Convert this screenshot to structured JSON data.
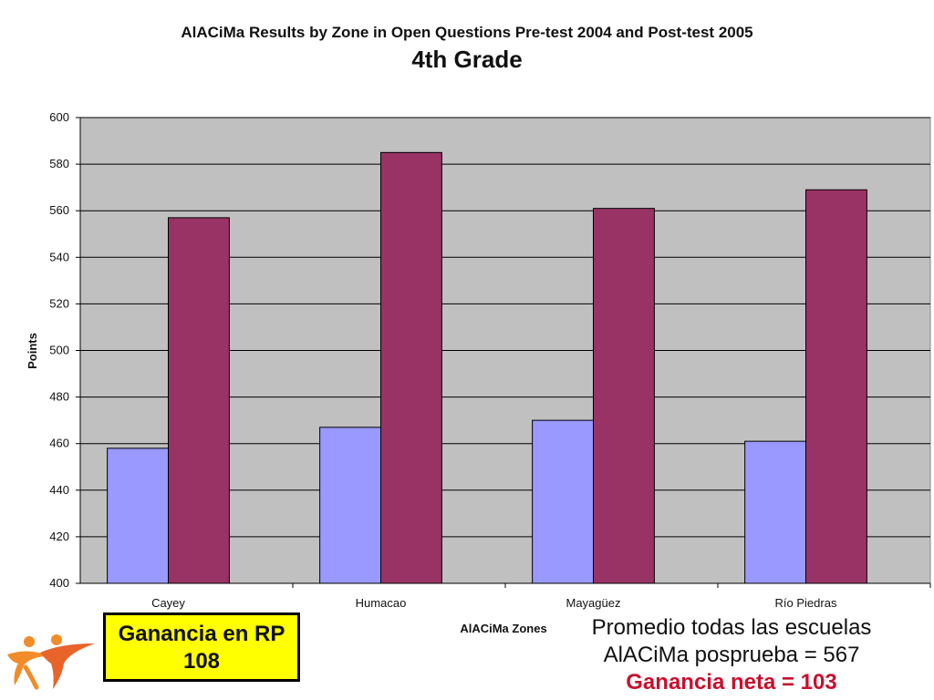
{
  "header": {
    "title": "AlACiMa Results by Zone in Open Questions Pre-test 2004 and Post-test 2005",
    "subtitle": "4th Grade"
  },
  "chart_data": {
    "type": "bar",
    "title": "AlACiMa Results by Zone in Open Questions Pre-test 2004 and Post-test 2005",
    "subtitle": "4th Grade",
    "xlabel": "AlACiMa Zones",
    "ylabel": "Points",
    "ylim": [
      400,
      600
    ],
    "yticks": [
      400,
      420,
      440,
      460,
      480,
      500,
      520,
      540,
      560,
      580,
      600
    ],
    "grid": true,
    "categories": [
      "Cayey",
      "Humacao",
      "Mayagüez",
      "Río Piedras"
    ],
    "series": [
      {
        "values": [
          458,
          467,
          470,
          461
        ],
        "color": "#9999ff"
      },
      {
        "values": [
          557,
          585,
          561,
          569
        ],
        "color": "#993366"
      }
    ],
    "plot_background": "#c0c0c0"
  },
  "annotations": {
    "gain_box_line1": "Ganancia en RP",
    "gain_box_line2": "108",
    "gain_box_color": "#ffff00",
    "avg_line1": "Promedio todas las escuelas",
    "avg_line2": "AlACiMa posprueba = 567",
    "net_gain": "Ganancia neta = 103",
    "net_gain_color": "#c8102e"
  },
  "logo": {
    "icon": "people-logo-icon"
  }
}
